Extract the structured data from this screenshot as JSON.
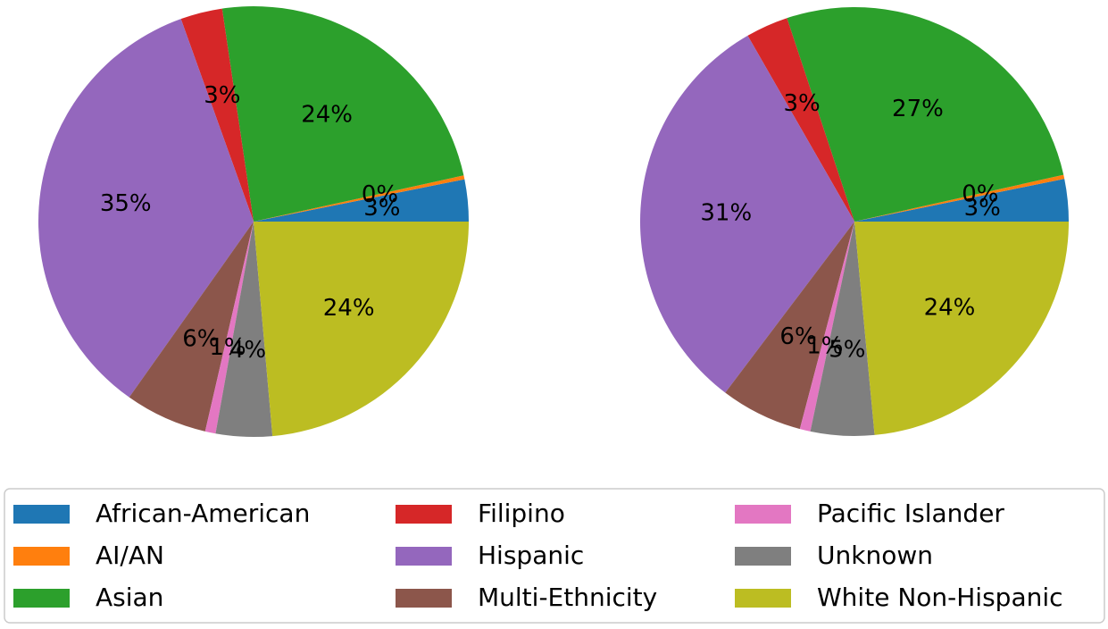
{
  "chart_data": [
    {
      "type": "pie",
      "categories": [
        "African-American",
        "AI/AN",
        "Asian",
        "Filipino",
        "Hispanic",
        "Multi-Ethnicity",
        "Pacific Islander",
        "Unknown",
        "White Non-Hispanic"
      ],
      "values": [
        3.2,
        0.3,
        24.3,
        3.2,
        35.3,
        6.3,
        0.8,
        4.3,
        24
      ],
      "value_labels": [
        "3%",
        "0%",
        "24%",
        "3%",
        "35%",
        "6%",
        "1%",
        "4%",
        "24%"
      ],
      "colors": [
        "#1f77b4",
        "#ff7f0e",
        "#2ca02c",
        "#d62728",
        "#9467bd",
        "#8c564b",
        "#e377c2",
        "#7f7f7f",
        "#bcbd22"
      ]
    },
    {
      "type": "pie",
      "categories": [
        "African-American",
        "AI/AN",
        "Asian",
        "Filipino",
        "Hispanic",
        "Multi-Ethnicity",
        "Pacific Islander",
        "Unknown",
        "White Non-Hispanic"
      ],
      "values": [
        3.2,
        0.3,
        26.6,
        3.2,
        31.4,
        6.2,
        0.8,
        4.8,
        23.5
      ],
      "value_labels": [
        "3%",
        "0%",
        "27%",
        "3%",
        "31%",
        "6%",
        "1%",
        "5%",
        "24%"
      ],
      "colors": [
        "#1f77b4",
        "#ff7f0e",
        "#2ca02c",
        "#d62728",
        "#9467bd",
        "#8c564b",
        "#e377c2",
        "#7f7f7f",
        "#bcbd22"
      ]
    }
  ],
  "legend": {
    "position": "lower center",
    "columns": 3
  }
}
